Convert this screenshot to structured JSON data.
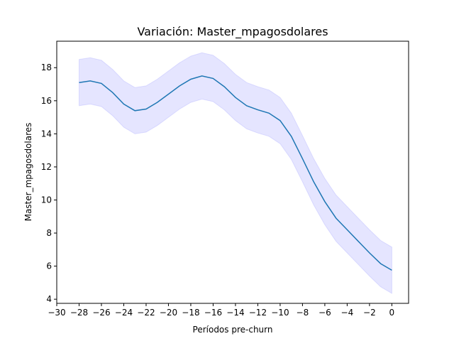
{
  "chart_data": {
    "type": "line",
    "title": "Variación: Master_mpagosdolares",
    "xlabel": "Períodos pre-churn",
    "ylabel": "Master_mpagosdolares",
    "xlim": [
      -30,
      1.5
    ],
    "ylim": [
      3.75,
      19.6
    ],
    "x_ticks": [
      -30,
      -28,
      -26,
      -24,
      -22,
      -20,
      -18,
      -16,
      -14,
      -12,
      -10,
      -8,
      -6,
      -4,
      -2,
      0
    ],
    "x_tick_labels": [
      "−30",
      "−28",
      "−26",
      "−24",
      "−22",
      "−20",
      "−18",
      "−16",
      "−14",
      "−12",
      "−10",
      "−8",
      "−6",
      "−4",
      "−2",
      "0"
    ],
    "y_ticks": [
      4,
      6,
      8,
      10,
      12,
      14,
      16,
      18
    ],
    "y_tick_labels": [
      "4",
      "6",
      "8",
      "10",
      "12",
      "14",
      "16",
      "18"
    ],
    "grid": false,
    "line_color": "#1f77b4",
    "band_color": "#0000ff",
    "series": [
      {
        "x": [
          -28,
          -27,
          -26,
          -25,
          -24,
          -23,
          -22,
          -21,
          -20,
          -19,
          -18,
          -17,
          -16,
          -15,
          -14,
          -13,
          -12,
          -11,
          -10,
          -9,
          -8,
          -7,
          -6,
          -5,
          -4,
          -3,
          -2,
          -1,
          0
        ],
        "values": [
          17.1,
          17.2,
          17.05,
          16.5,
          15.8,
          15.4,
          15.5,
          15.9,
          16.4,
          16.9,
          17.3,
          17.5,
          17.35,
          16.85,
          16.2,
          15.7,
          15.45,
          15.25,
          14.8,
          13.85,
          12.5,
          11.1,
          9.9,
          8.9,
          8.2,
          7.5,
          6.8,
          6.15,
          5.75
        ],
        "lower": [
          15.7,
          15.8,
          15.65,
          15.1,
          14.4,
          14.0,
          14.1,
          14.5,
          15.0,
          15.5,
          15.9,
          16.1,
          15.95,
          15.45,
          14.8,
          14.3,
          14.05,
          13.85,
          13.4,
          12.45,
          11.1,
          9.7,
          8.5,
          7.5,
          6.8,
          6.1,
          5.4,
          4.75,
          4.35
        ],
        "upper": [
          18.5,
          18.6,
          18.45,
          17.9,
          17.2,
          16.8,
          16.9,
          17.3,
          17.8,
          18.3,
          18.7,
          18.9,
          18.75,
          18.25,
          17.6,
          17.1,
          16.85,
          16.65,
          16.2,
          15.25,
          13.9,
          12.5,
          11.3,
          10.3,
          9.6,
          8.9,
          8.2,
          7.55,
          7.15
        ]
      }
    ]
  }
}
